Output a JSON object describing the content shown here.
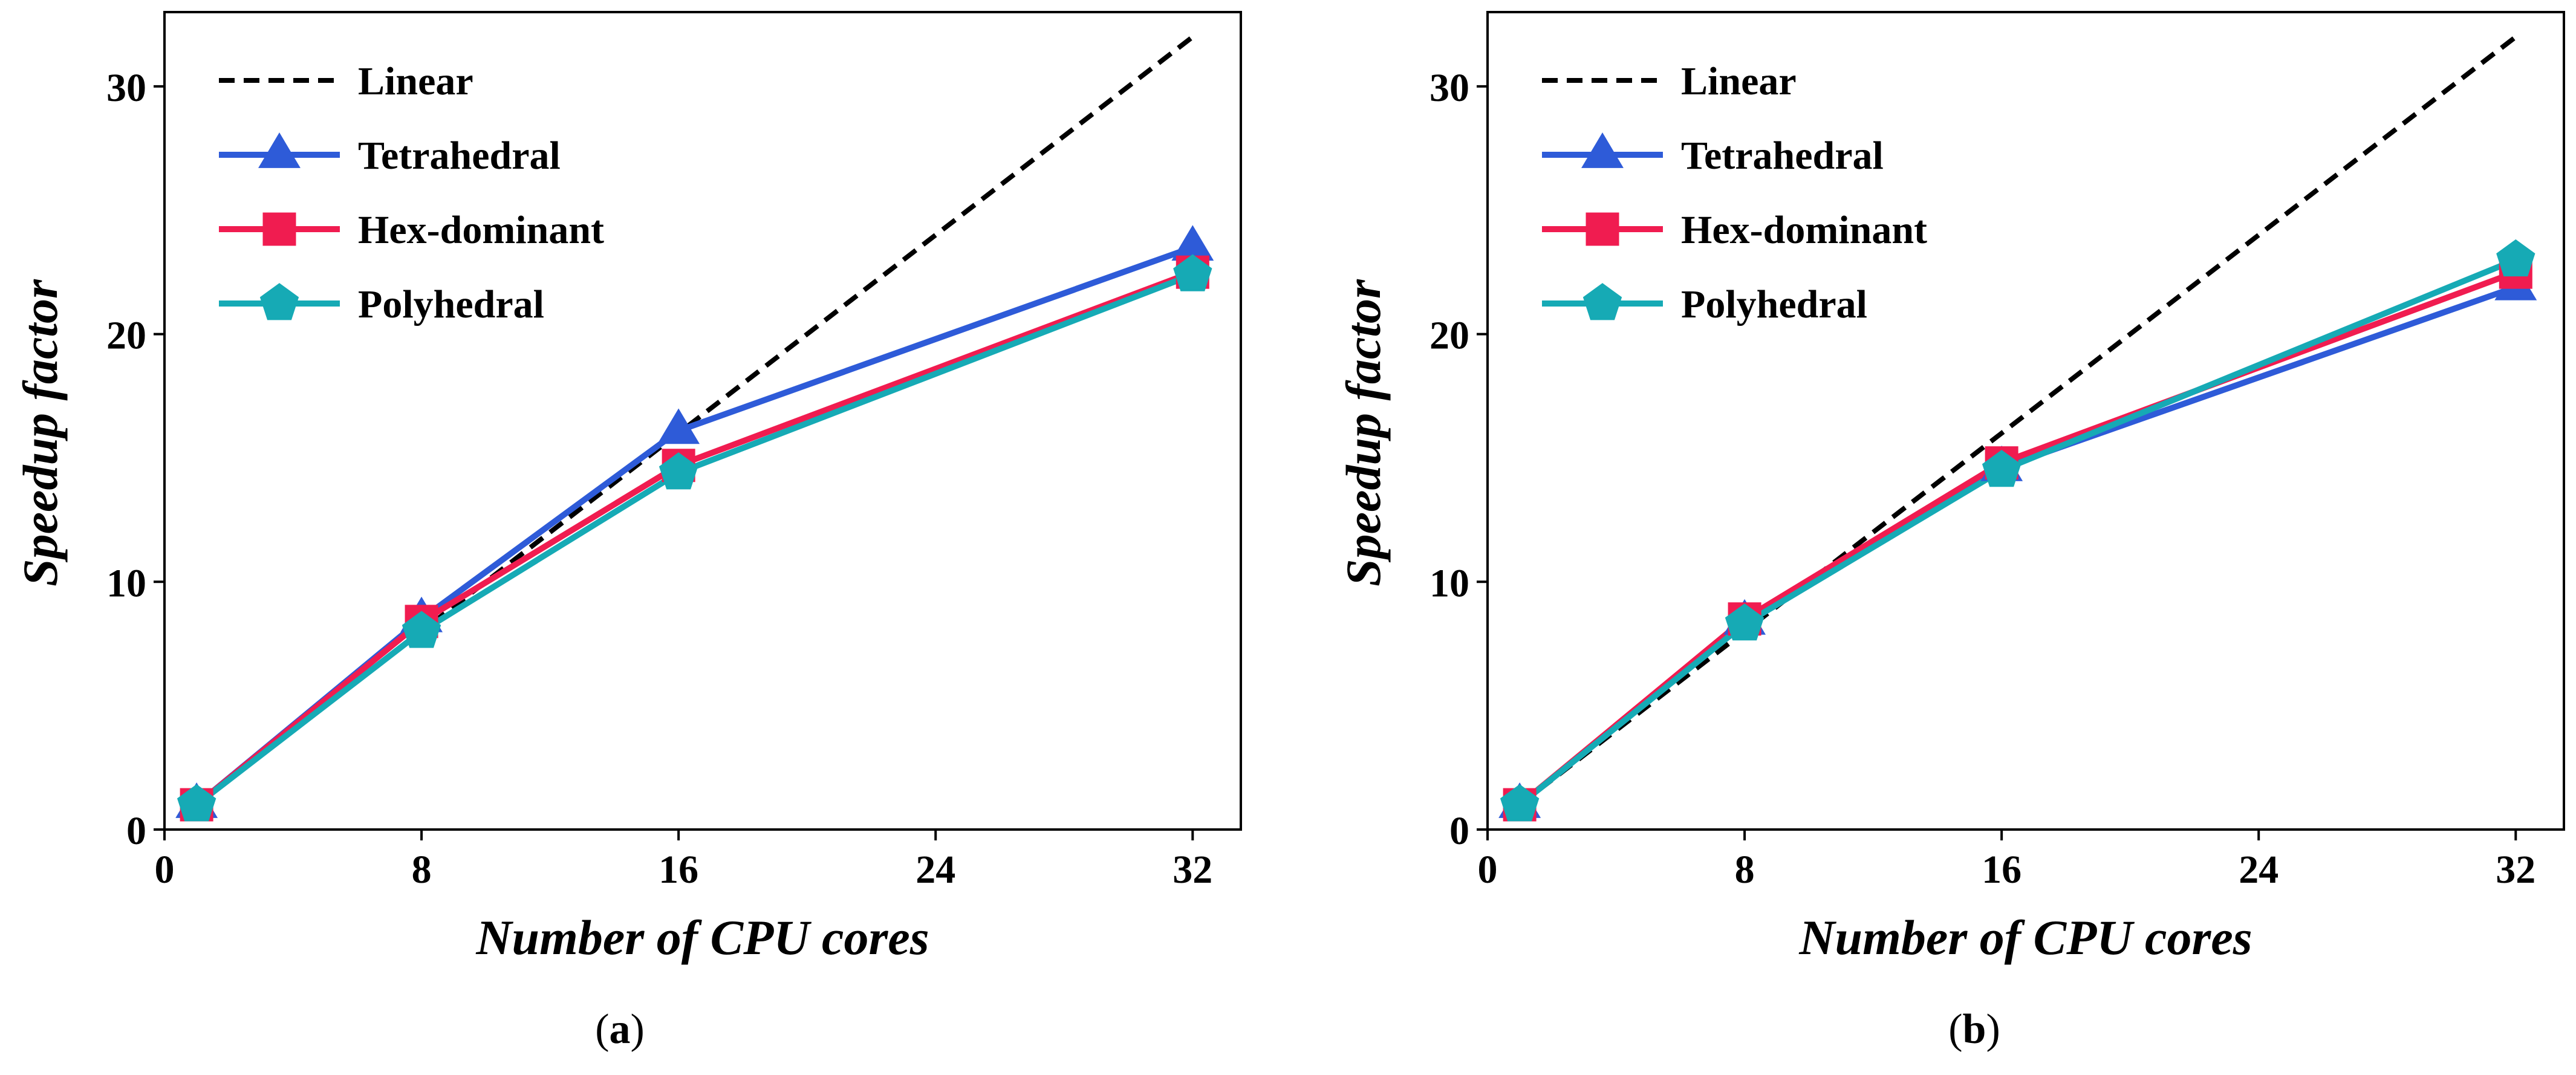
{
  "chart_data": [
    {
      "type": "line",
      "panel_label": "a",
      "xlabel": "Number of CPU cores",
      "ylabel": "Speedup factor",
      "xlim": [
        0,
        33.5
      ],
      "ylim": [
        0,
        33
      ],
      "xticks": [
        0,
        8,
        16,
        24,
        32
      ],
      "yticks": [
        0,
        10,
        20,
        30
      ],
      "grid": false,
      "legend_position": "top-left",
      "x": [
        1,
        8,
        16,
        32
      ],
      "series": [
        {
          "name": "Linear",
          "x": [
            1,
            32
          ],
          "values": [
            1,
            32
          ],
          "color": "#000000",
          "style": "dashed",
          "marker": "none"
        },
        {
          "name": "Tetrahedral",
          "values": [
            1.0,
            8.5,
            16.1,
            23.5
          ],
          "color": "#2e5bd8",
          "marker": "triangle"
        },
        {
          "name": "Hex-dominant",
          "values": [
            1.0,
            8.4,
            14.7,
            22.5
          ],
          "color": "#f01c50",
          "marker": "square"
        },
        {
          "name": "Polyhedral",
          "values": [
            1.0,
            8.0,
            14.4,
            22.4
          ],
          "color": "#16aab5",
          "marker": "pentagon"
        }
      ]
    },
    {
      "type": "line",
      "panel_label": "b",
      "xlabel": "Number of CPU cores",
      "ylabel": "Speedup factor",
      "xlim": [
        0,
        33.5
      ],
      "ylim": [
        0,
        33
      ],
      "xticks": [
        0,
        8,
        16,
        24,
        32
      ],
      "yticks": [
        0,
        10,
        20,
        30
      ],
      "grid": false,
      "legend_position": "top-left",
      "x": [
        1,
        8,
        16,
        32
      ],
      "series": [
        {
          "name": "Linear",
          "x": [
            1,
            32
          ],
          "values": [
            1,
            32
          ],
          "color": "#000000",
          "style": "dashed",
          "marker": "none"
        },
        {
          "name": "Tetrahedral",
          "values": [
            1.0,
            8.4,
            14.6,
            21.9
          ],
          "color": "#2e5bd8",
          "marker": "triangle"
        },
        {
          "name": "Hex-dominant",
          "values": [
            1.0,
            8.5,
            14.8,
            22.5
          ],
          "color": "#f01c50",
          "marker": "square"
        },
        {
          "name": "Polyhedral",
          "values": [
            1.0,
            8.3,
            14.5,
            23.0
          ],
          "color": "#16aab5",
          "marker": "pentagon"
        }
      ]
    }
  ]
}
